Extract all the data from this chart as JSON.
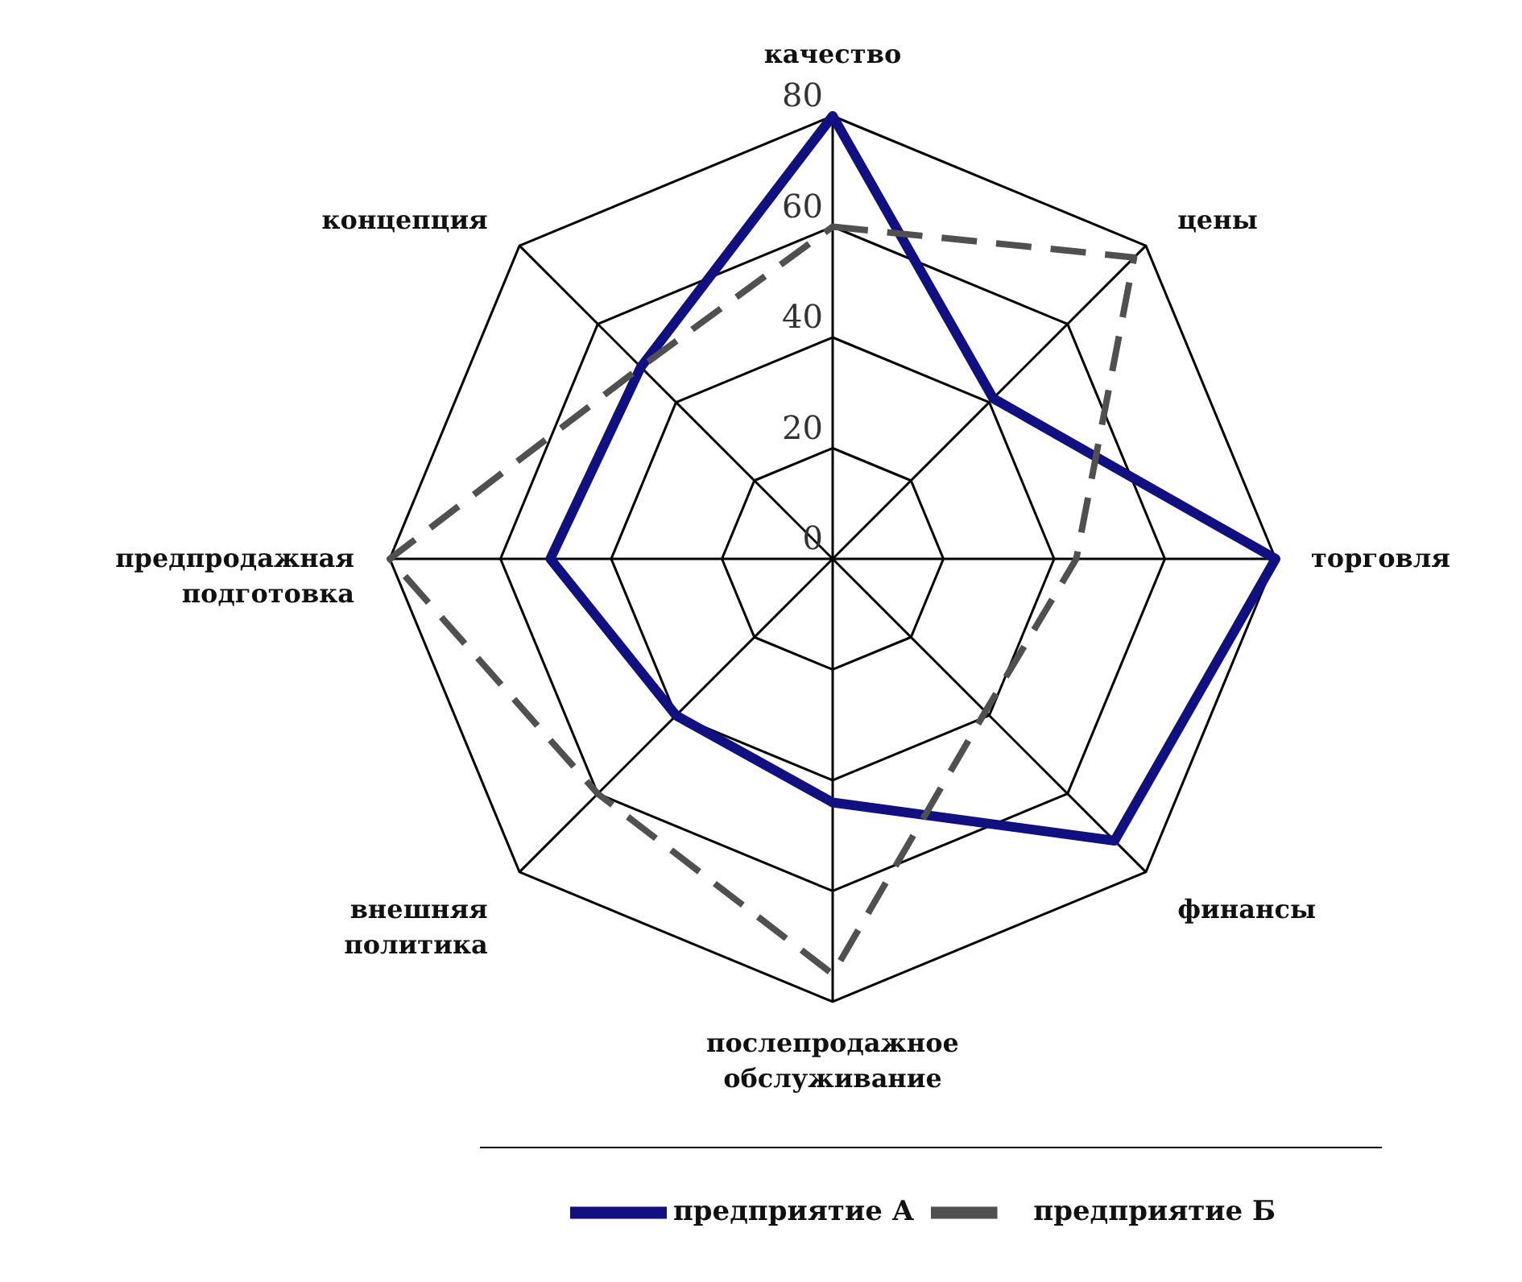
{
  "chart_data": {
    "type": "radar",
    "categories": [
      "качество",
      "цены",
      "торговля",
      "финансы",
      "послепродажное обслуживание",
      "внешняя политика",
      "предпродажная подготовка",
      "концепция"
    ],
    "series": [
      {
        "name": "предприятие А",
        "color": "#101080",
        "line_style": "solid",
        "values": [
          80,
          41,
          80,
          72,
          44,
          40,
          51,
          49
        ]
      },
      {
        "name": "предприятие Б",
        "color": "#505050",
        "line_style": "dashed",
        "values": [
          60,
          77,
          44,
          39,
          75,
          60,
          80,
          49
        ]
      }
    ],
    "ylim": [
      0,
      80
    ],
    "yticks": [
      0,
      20,
      40,
      60,
      80
    ],
    "grid": true,
    "legend": "bottom",
    "marker": "none"
  }
}
